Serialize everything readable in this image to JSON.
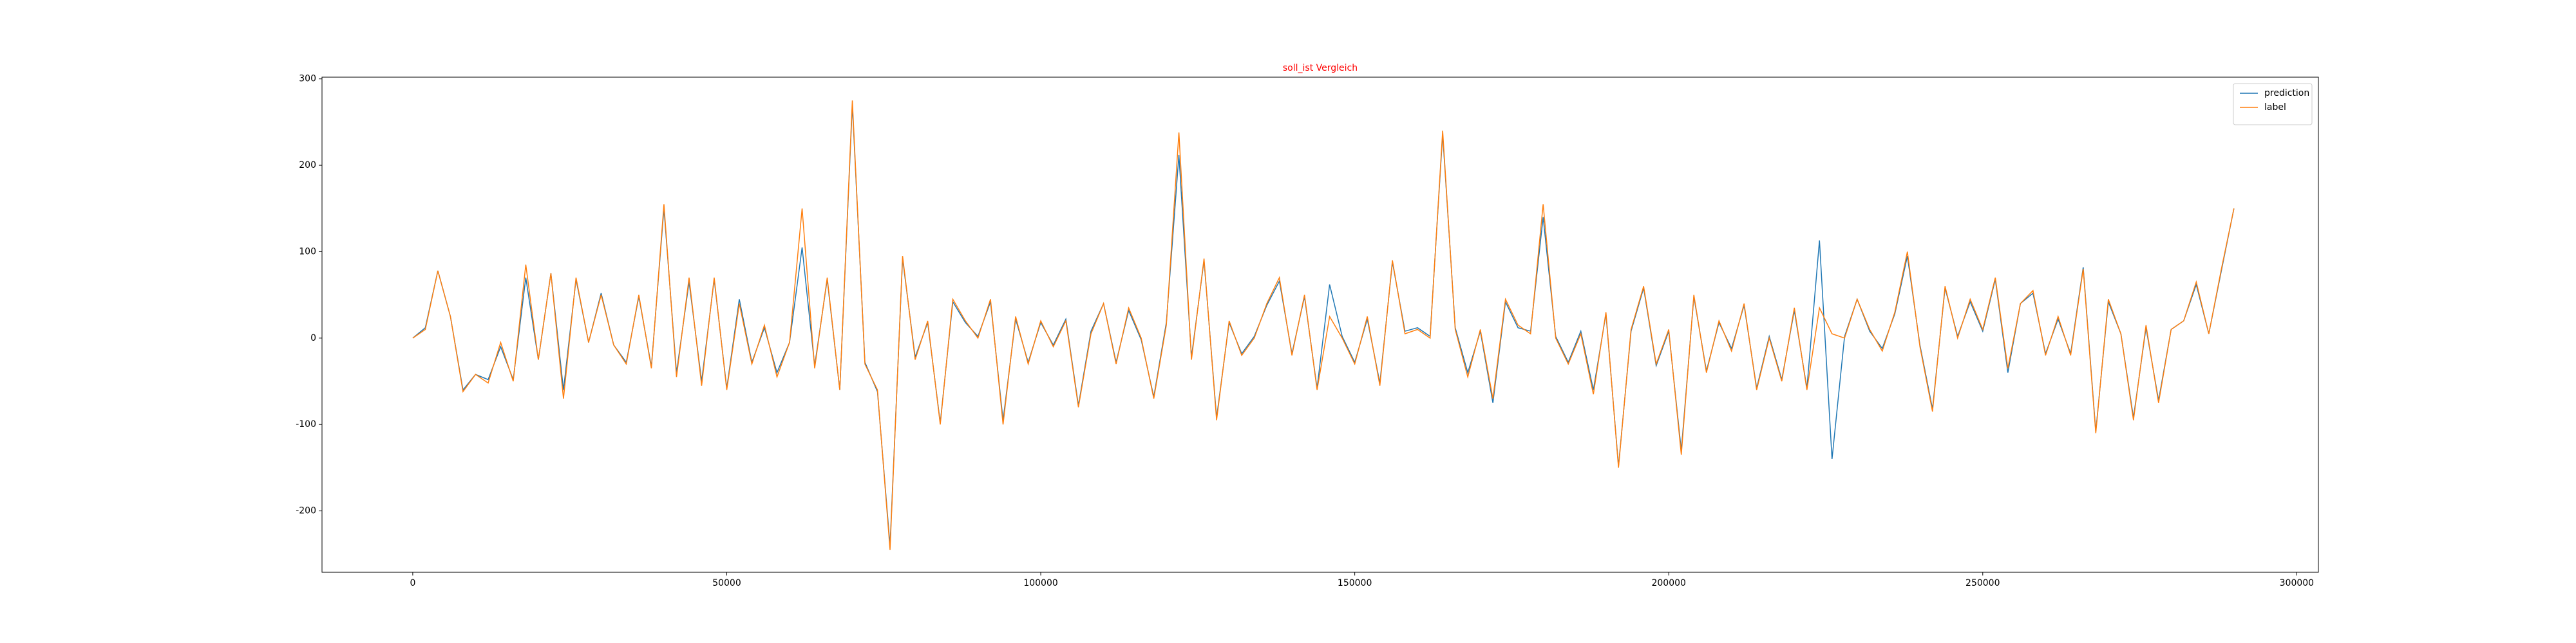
{
  "chart_data": {
    "type": "line",
    "title": "soll_ist Vergleich",
    "title_color": "#ff0000",
    "x": [
      0,
      2000,
      4000,
      6000,
      8000,
      10000,
      12000,
      14000,
      16000,
      18000,
      20000,
      22000,
      24000,
      26000,
      28000,
      30000,
      32000,
      34000,
      36000,
      38000,
      40000,
      42000,
      44000,
      46000,
      48000,
      50000,
      52000,
      54000,
      56000,
      58000,
      60000,
      62000,
      64000,
      66000,
      68000,
      70000,
      72000,
      74000,
      76000,
      78000,
      80000,
      82000,
      84000,
      86000,
      88000,
      90000,
      92000,
      94000,
      96000,
      98000,
      100000,
      102000,
      104000,
      106000,
      108000,
      110000,
      112000,
      114000,
      116000,
      118000,
      120000,
      122000,
      124000,
      126000,
      128000,
      130000,
      132000,
      134000,
      136000,
      138000,
      140000,
      142000,
      144000,
      146000,
      148000,
      150000,
      152000,
      154000,
      156000,
      158000,
      160000,
      162000,
      164000,
      166000,
      168000,
      170000,
      172000,
      174000,
      176000,
      178000,
      180000,
      182000,
      184000,
      186000,
      188000,
      190000,
      192000,
      194000,
      196000,
      198000,
      200000,
      202000,
      204000,
      206000,
      208000,
      210000,
      212000,
      214000,
      216000,
      218000,
      220000,
      222000,
      224000,
      226000,
      228000,
      230000,
      232000,
      234000,
      236000,
      238000,
      240000,
      242000,
      244000,
      246000,
      248000,
      250000,
      252000,
      254000,
      256000,
      258000,
      260000,
      262000,
      264000,
      266000,
      268000,
      270000,
      272000,
      274000,
      276000,
      278000,
      280000,
      282000,
      284000,
      286000,
      288000,
      290000
    ],
    "series": [
      {
        "name": "prediction",
        "color": "#1f77b4",
        "values": [
          0,
          12,
          78,
          25,
          -60,
          -42,
          -48,
          -10,
          -48,
          70,
          -25,
          75,
          -60,
          68,
          -5,
          52,
          -8,
          -28,
          48,
          -33,
          150,
          -40,
          65,
          -50,
          68,
          -58,
          45,
          -28,
          12,
          -40,
          -5,
          105,
          -32,
          68,
          -60,
          270,
          -28,
          -62,
          -240,
          92,
          -22,
          18,
          -98,
          42,
          18,
          2,
          42,
          -95,
          22,
          -28,
          18,
          -8,
          22,
          -78,
          8,
          40,
          -28,
          32,
          -2,
          -68,
          18,
          212,
          -22,
          90,
          -92,
          18,
          -18,
          2,
          38,
          66,
          -18,
          48,
          -58,
          62,
          2,
          -28,
          22,
          -52,
          88,
          8,
          12,
          2,
          236,
          12,
          -40,
          8,
          -75,
          42,
          12,
          8,
          140,
          2,
          -28,
          8,
          -60,
          28,
          -148,
          8,
          58,
          -32,
          8,
          -130,
          48,
          -38,
          18,
          -12,
          38,
          -58,
          2,
          -48,
          32,
          -58,
          113,
          -140,
          2,
          45,
          8,
          -12,
          28,
          95,
          -8,
          -82,
          58,
          2,
          42,
          8,
          68,
          -40,
          40,
          52,
          -18,
          22,
          -18,
          82,
          -108,
          42,
          5,
          -92,
          12,
          -72,
          10,
          20,
          62,
          5,
          78,
          150
        ]
      },
      {
        "name": "label",
        "color": "#ff7f0e",
        "values": [
          0,
          10,
          78,
          25,
          -62,
          -42,
          -52,
          -5,
          -50,
          85,
          -25,
          75,
          -70,
          70,
          -5,
          50,
          -8,
          -30,
          50,
          -35,
          155,
          -45,
          70,
          -55,
          70,
          -60,
          40,
          -30,
          15,
          -45,
          -5,
          150,
          -35,
          70,
          -60,
          275,
          -30,
          -60,
          -245,
          95,
          -25,
          20,
          -100,
          45,
          20,
          0,
          45,
          -100,
          25,
          -30,
          20,
          -10,
          20,
          -80,
          5,
          40,
          -30,
          35,
          0,
          -70,
          15,
          238,
          -25,
          92,
          -95,
          20,
          -20,
          0,
          40,
          70,
          -20,
          50,
          -60,
          25,
          0,
          -30,
          25,
          -55,
          90,
          5,
          10,
          0,
          240,
          10,
          -45,
          10,
          -70,
          45,
          15,
          5,
          155,
          0,
          -30,
          5,
          -65,
          30,
          -150,
          10,
          60,
          -30,
          10,
          -135,
          50,
          -40,
          20,
          -15,
          40,
          -60,
          0,
          -50,
          35,
          -60,
          35,
          5,
          0,
          45,
          10,
          -15,
          30,
          100,
          -10,
          -85,
          60,
          0,
          45,
          10,
          70,
          -35,
          40,
          55,
          -20,
          25,
          -20,
          80,
          -110,
          45,
          5,
          -95,
          15,
          -75,
          10,
          20,
          65,
          5,
          80,
          150
        ]
      }
    ],
    "xlim": [
      -14450,
      303450
    ],
    "ylim": [
      -271,
      302
    ],
    "xticks": [
      0,
      50000,
      100000,
      150000,
      200000,
      250000,
      300000
    ],
    "yticks": [
      -200,
      -100,
      0,
      100,
      200,
      300
    ],
    "legend": "upper right"
  }
}
